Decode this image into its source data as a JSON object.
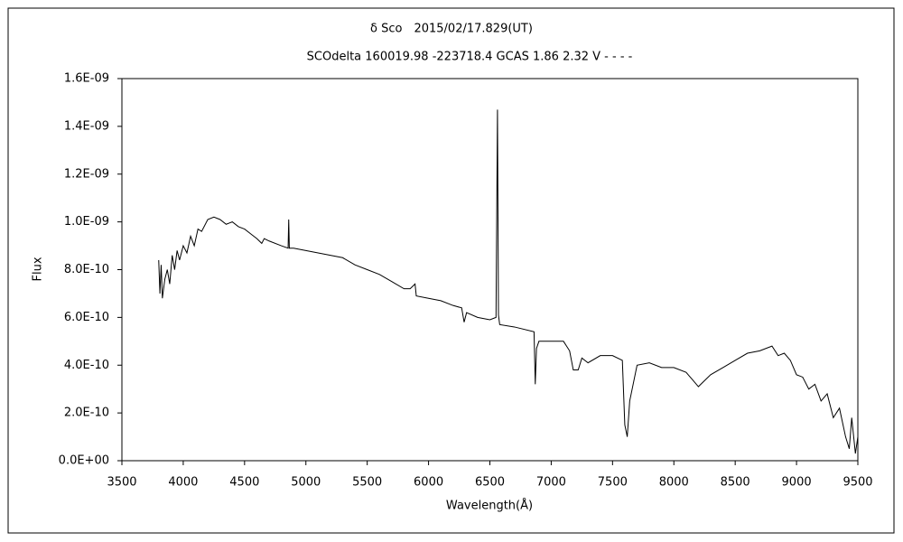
{
  "chart_data": {
    "type": "line",
    "title": "δ Sco　2015/02/17.829(UT)",
    "subtitle": "SCOdelta 160019.98 -223718.4 GCAS 1.86 2.32 V - - - -",
    "x_label": "Wavelength(Å)",
    "y_label": "Flux",
    "color": "#000000",
    "grid": false,
    "xlim": [
      3500,
      9500
    ],
    "xticks": [
      3500,
      4000,
      4500,
      5000,
      5500,
      6000,
      6500,
      7000,
      7500,
      8000,
      8500,
      9000,
      9500
    ],
    "ylim": [
      0,
      1.6e-09
    ],
    "yticks": [
      {
        "value": 0,
        "label": "0.0E+00"
      },
      {
        "value": 2e-10,
        "label": "2.0E-10"
      },
      {
        "value": 4e-10,
        "label": "4.0E-10"
      },
      {
        "value": 6e-10,
        "label": "6.0E-10"
      },
      {
        "value": 8e-10,
        "label": "8.0E-10"
      },
      {
        "value": 1e-09,
        "label": "1.0E-09"
      },
      {
        "value": 1.2e-09,
        "label": "1.2E-09"
      },
      {
        "value": 1.4e-09,
        "label": "1.4E-09"
      },
      {
        "value": 1.6e-09,
        "label": "1.6E-09"
      }
    ],
    "x": [
      3800,
      3810,
      3820,
      3830,
      3850,
      3870,
      3890,
      3910,
      3930,
      3950,
      3970,
      4000,
      4030,
      4060,
      4090,
      4120,
      4150,
      4200,
      4250,
      4300,
      4350,
      4400,
      4450,
      4500,
      4550,
      4600,
      4640,
      4660,
      4700,
      4800,
      4855,
      4860,
      4865,
      4900,
      5000,
      5100,
      5200,
      5300,
      5400,
      5500,
      5600,
      5700,
      5800,
      5850,
      5890,
      5900,
      6000,
      6100,
      6200,
      6270,
      6290,
      6310,
      6400,
      6500,
      6550,
      6562,
      6570,
      6580,
      6700,
      6860,
      6870,
      6880,
      6900,
      7000,
      7100,
      7150,
      7180,
      7220,
      7250,
      7300,
      7400,
      7500,
      7580,
      7600,
      7620,
      7640,
      7700,
      7800,
      7900,
      8000,
      8100,
      8150,
      8200,
      8300,
      8400,
      8500,
      8600,
      8700,
      8800,
      8850,
      8900,
      8950,
      9000,
      9050,
      9100,
      9150,
      9200,
      9250,
      9300,
      9350,
      9400,
      9430,
      9450,
      9480,
      9500
    ],
    "values": [
      8.4e-10,
      7e-10,
      8.2e-10,
      6.8e-10,
      7.6e-10,
      8e-10,
      7.4e-10,
      8.6e-10,
      8e-10,
      8.8e-10,
      8.4e-10,
      9e-10,
      8.7e-10,
      9.4e-10,
      9e-10,
      9.7e-10,
      9.6e-10,
      1.01e-09,
      1.02e-09,
      1.01e-09,
      9.9e-10,
      1e-09,
      9.8e-10,
      9.7e-10,
      9.5e-10,
      9.3e-10,
      9.1e-10,
      9.3e-10,
      9.2e-10,
      9e-10,
      8.9e-10,
      1.01e-09,
      8.9e-10,
      8.9e-10,
      8.8e-10,
      8.7e-10,
      8.6e-10,
      8.5e-10,
      8.2e-10,
      8e-10,
      7.8e-10,
      7.5e-10,
      7.2e-10,
      7.2e-10,
      7.4e-10,
      6.9e-10,
      6.8e-10,
      6.7e-10,
      6.5e-10,
      6.4e-10,
      5.8e-10,
      6.2e-10,
      6e-10,
      5.9e-10,
      6e-10,
      1.47e-09,
      6.1e-10,
      5.7e-10,
      5.6e-10,
      5.4e-10,
      3.2e-10,
      4.7e-10,
      5e-10,
      5e-10,
      5e-10,
      4.6e-10,
      3.8e-10,
      3.8e-10,
      4.3e-10,
      4.1e-10,
      4.4e-10,
      4.4e-10,
      4.2e-10,
      1.5e-10,
      1e-10,
      2.5e-10,
      4e-10,
      4.1e-10,
      3.9e-10,
      3.9e-10,
      3.7e-10,
      3.4e-10,
      3.1e-10,
      3.6e-10,
      3.9e-10,
      4.2e-10,
      4.5e-10,
      4.6e-10,
      4.8e-10,
      4.4e-10,
      4.5e-10,
      4.2e-10,
      3.6e-10,
      3.5e-10,
      3e-10,
      3.2e-10,
      2.5e-10,
      2.8e-10,
      1.8e-10,
      2.2e-10,
      1e-10,
      5e-11,
      1.8e-10,
      3e-11,
      1e-10
    ]
  }
}
